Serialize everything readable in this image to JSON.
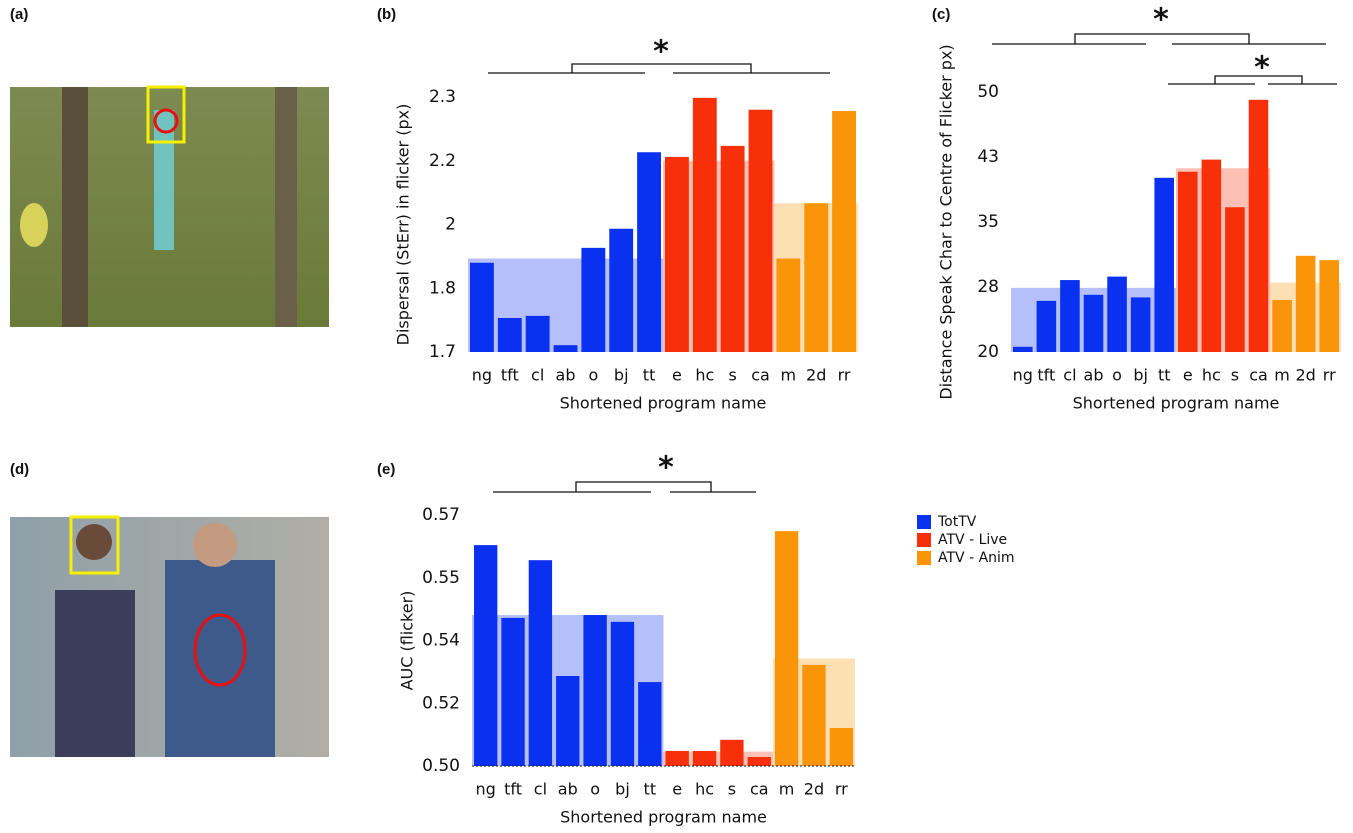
{
  "images": [
    {
      "label": "(a)"
    },
    {
      "label": "(d)"
    }
  ],
  "chart_data": [
    {
      "type": "bar",
      "label": "(b)",
      "ylabel": "Dispersal (StErr) in flicker (px)",
      "xlabel": "Shortened program name",
      "annotations": [
        "*"
      ],
      "categories": [
        "ng",
        "tft",
        "cl",
        "ab",
        "o",
        "bj",
        "tt",
        "e",
        "hc",
        "s",
        "ca",
        "m",
        "2d",
        "rr"
      ],
      "ylim": [
        1.7,
        2.3
      ],
      "yticks": [
        1.7,
        {
          "value": 1.85,
          "label": "1.8"
        },
        2.0,
        {
          "value": 2.15,
          "label": "2.2"
        },
        2.3
      ],
      "series": [
        {
          "name": "TotTV",
          "color": "#0a30f0",
          "mean": 1.92,
          "values": [
            1.91,
            1.78,
            1.785,
            1.716,
            1.945,
            1.99,
            2.17,
            null,
            null,
            null,
            null,
            null,
            null,
            null
          ]
        },
        {
          "name": "ATV - Live",
          "color": "#f8300a",
          "mean": 2.15,
          "values": [
            null,
            null,
            null,
            null,
            null,
            null,
            null,
            2.159,
            2.298,
            2.185,
            2.27,
            null,
            null,
            null
          ]
        },
        {
          "name": "ATV - Anim",
          "color": "#fa9408",
          "mean": 2.05,
          "values": [
            null,
            null,
            null,
            null,
            null,
            null,
            null,
            null,
            null,
            null,
            null,
            1.92,
            2.05,
            2.267
          ]
        }
      ]
    },
    {
      "type": "bar",
      "label": "(c)",
      "ylabel": "Distance Speak Char to Centre of Flicker px)",
      "xlabel": "Shortened program name",
      "annotations": [
        "*",
        "*"
      ],
      "categories": [
        "ng",
        "tft",
        "cl",
        "ab",
        "o",
        "bj",
        "tt",
        "e",
        "hc",
        "s",
        "ca",
        "m",
        "2d",
        "rr"
      ],
      "ylim": [
        20,
        50
      ],
      "yticks": [
        20,
        {
          "value": 27.5,
          "label": "28"
        },
        35,
        {
          "value": 42.5,
          "label": "43"
        },
        50
      ],
      "series": [
        {
          "name": "TotTV",
          "color": "#0a30f0",
          "mean": 27.4,
          "values": [
            20.6,
            25.9,
            28.3,
            26.6,
            28.7,
            26.3,
            40.1,
            null,
            null,
            null,
            null,
            null,
            null,
            null
          ]
        },
        {
          "name": "ATV - Live",
          "color": "#f8300a",
          "mean": 41.2,
          "values": [
            null,
            null,
            null,
            null,
            null,
            null,
            null,
            40.8,
            42.2,
            36.7,
            49.1,
            null,
            null,
            null
          ]
        },
        {
          "name": "ATV - Anim",
          "color": "#fa9408",
          "mean": 28.0,
          "values": [
            null,
            null,
            null,
            null,
            null,
            null,
            null,
            null,
            null,
            null,
            null,
            26.0,
            31.1,
            30.6
          ]
        }
      ]
    },
    {
      "type": "bar",
      "label": "(e)",
      "ylabel": "AUC (flicker)",
      "xlabel": "Shortened program name",
      "annotations": [
        "*"
      ],
      "legend": true,
      "categories": [
        "ng",
        "tft",
        "cl",
        "ab",
        "o",
        "bj",
        "tt",
        "e",
        "hc",
        "s",
        "ca",
        "m",
        "2d",
        "rr"
      ],
      "ylim": [
        0.5,
        0.57
      ],
      "yticks": [
        {
          "value": 0.5,
          "label": "0.50"
        },
        {
          "value": 0.5175,
          "label": "0.52"
        },
        {
          "value": 0.535,
          "label": "0.54"
        },
        {
          "value": 0.5525,
          "label": "0.55"
        },
        0.57
      ],
      "series": [
        {
          "name": "TotTV",
          "color": "#0a30f0",
          "mean": 0.5421,
          "values": [
            0.5616,
            0.5413,
            0.5574,
            0.5251,
            0.5421,
            0.5402,
            0.5234,
            null,
            null,
            null,
            null,
            null,
            null,
            null
          ]
        },
        {
          "name": "ATV - Live",
          "color": "#f8300a",
          "mean": 0.504,
          "values": [
            null,
            null,
            null,
            null,
            null,
            null,
            null,
            0.5042,
            0.5042,
            0.5073,
            0.5025,
            null,
            null,
            null
          ]
        },
        {
          "name": "ATV - Anim",
          "color": "#fa9408",
          "mean": 0.53,
          "values": [
            null,
            null,
            null,
            null,
            null,
            null,
            null,
            null,
            null,
            null,
            null,
            0.5655,
            0.5282,
            0.5106
          ]
        }
      ]
    }
  ]
}
